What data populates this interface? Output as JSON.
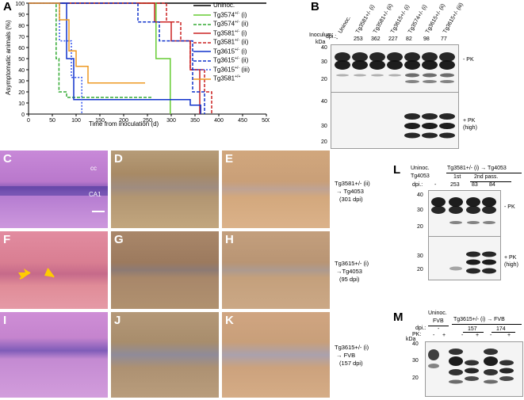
{
  "labels": {
    "A": "A",
    "B": "B",
    "C": "C",
    "D": "D",
    "E": "E",
    "F": "F",
    "G": "G",
    "H": "H",
    "I": "I",
    "J": "J",
    "K": "K",
    "L": "L",
    "M": "M"
  },
  "panelA": {
    "ylabel": "Asymptomatic animals (%)",
    "xlabel": "Time from inoculation (d)",
    "yticks": [
      "0",
      "10",
      "20",
      "30",
      "40",
      "50",
      "60",
      "70",
      "80",
      "90",
      "100"
    ],
    "xticks": [
      "0",
      "50",
      "100",
      "150",
      "200",
      "250",
      "300",
      "350",
      "400",
      "450",
      "500"
    ]
  },
  "chart_data": {
    "type": "line",
    "title": "",
    "xlabel": "Time from inoculation (d)",
    "ylabel": "Asymptomatic animals (%)",
    "xlim": [
      0,
      500
    ],
    "ylim": [
      0,
      100
    ],
    "series": [
      {
        "name": "Uninoc.",
        "color": "#000000",
        "dash": "",
        "x": [
          0,
          500
        ],
        "y": [
          100,
          100
        ]
      },
      {
        "name": "Tg3574+/- (i)",
        "color": "#66cc33",
        "dash": "",
        "x": [
          0,
          268,
          268,
          298,
          298
        ],
        "y": [
          100,
          100,
          50,
          50,
          0
        ]
      },
      {
        "name": "Tg3574+/- (ii)",
        "color": "#33aa33",
        "dash": "4,2",
        "x": [
          0,
          58,
          58,
          64,
          64,
          80,
          80,
          260
        ],
        "y": [
          100,
          100,
          50,
          50,
          20,
          20,
          15,
          15
        ]
      },
      {
        "name": "Tg3581+/- (i)",
        "color": "#cc2222",
        "dash": "",
        "x": [
          0,
          265,
          265,
          300,
          300,
          340,
          340,
          360,
          360
        ],
        "y": [
          100,
          100,
          83,
          83,
          66,
          66,
          40,
          40,
          0
        ]
      },
      {
        "name": "Tg3581+/- (ii)",
        "color": "#cc2222",
        "dash": "4,2",
        "x": [
          0,
          290,
          290,
          320,
          320,
          340,
          340,
          370,
          370,
          385,
          385
        ],
        "y": [
          100,
          100,
          83,
          83,
          66,
          66,
          40,
          40,
          20,
          20,
          0
        ]
      },
      {
        "name": "Tg3615+/- (i)",
        "color": "#1133cc",
        "dash": "",
        "x": [
          0,
          80,
          80,
          95,
          95,
          340,
          340,
          362,
          362
        ],
        "y": [
          100,
          100,
          50,
          50,
          13,
          13,
          8,
          8,
          0
        ]
      },
      {
        "name": "Tg3615+/- (ii)",
        "color": "#1133cc",
        "dash": "4,2",
        "x": [
          0,
          230,
          230,
          275,
          275,
          345,
          345,
          370,
          370
        ],
        "y": [
          100,
          100,
          83,
          83,
          66,
          66,
          20,
          20,
          0
        ]
      },
      {
        "name": "Tg3615+/- (iii)",
        "color": "#3355ee",
        "dash": "2,2",
        "x": [
          0,
          65,
          65,
          90,
          90,
          112,
          112
        ],
        "y": [
          100,
          100,
          66,
          66,
          33,
          33,
          0
        ]
      },
      {
        "name": "Tg3581+/+",
        "color": "#ee9922",
        "dash": "",
        "x": [
          0,
          65,
          65,
          85,
          85,
          100,
          100,
          125,
          125,
          245
        ],
        "y": [
          100,
          100,
          85,
          85,
          57,
          57,
          43,
          43,
          28,
          28
        ]
      }
    ]
  },
  "legend": [
    {
      "main": "Uninoc.",
      "sup": "",
      "suf": "",
      "color": "#000000",
      "dash": ""
    },
    {
      "main": "Tg3574",
      "sup": "+/-",
      "suf": " (i)",
      "color": "#66cc33",
      "dash": ""
    },
    {
      "main": "Tg3574",
      "sup": "+/-",
      "suf": " (ii)",
      "color": "#33aa33",
      "dash": "4,2"
    },
    {
      "main": "Tg3581",
      "sup": "+/-",
      "suf": " (i)",
      "color": "#cc2222",
      "dash": ""
    },
    {
      "main": "Tg3581",
      "sup": "+/-",
      "suf": " (ii)",
      "color": "#cc2222",
      "dash": "4,2"
    },
    {
      "main": "Tg3615",
      "sup": "+/-",
      "suf": " (i)",
      "color": "#1133cc",
      "dash": ""
    },
    {
      "main": "Tg3615",
      "sup": "+/-",
      "suf": " (ii)",
      "color": "#1133cc",
      "dash": "4,2"
    },
    {
      "main": "Tg3615",
      "sup": "+/-",
      "suf": " (iii)",
      "color": "#3355ee",
      "dash": "2,2"
    },
    {
      "main": "Tg3581",
      "sup": "+/+",
      "suf": "",
      "color": "#ee9922",
      "dash": ""
    }
  ],
  "panelB": {
    "inoculum_label": "Inoculum:",
    "dpi_label": "dpi.:",
    "kda_label": "kDa",
    "lanes": [
      {
        "name": "Uninoc.",
        "dpi": "-"
      },
      {
        "name": "Tg3581+/- (i)",
        "dpi": "253"
      },
      {
        "name": "Tg3581+/- (ii)",
        "dpi": "362"
      },
      {
        "name": "Tg3615+/- (i)",
        "dpi": "227"
      },
      {
        "name": "Tg3574+/- (i)",
        "dpi": "82"
      },
      {
        "name": "Tg3615+/- (ii)",
        "dpi": "98"
      },
      {
        "name": "Tg3615+/- (iii)",
        "dpi": "77"
      }
    ],
    "markers_top": [
      "40",
      "30",
      "20"
    ],
    "markers_bottom": [
      "40",
      "30",
      "20"
    ],
    "label_minus": "- PK",
    "label_plus": "+ PK",
    "label_high": "(high)"
  },
  "histology": {
    "cc": "cc",
    "ca1": "CA1",
    "row1_caption_1": "Tg3581+/- (ii)",
    "row1_caption_2": "→ Tg4053",
    "row1_caption_3": "(301 dpi)",
    "row2_caption_1": "Tg3615+/- (i)",
    "row2_caption_2": "→Tg4053",
    "row2_caption_3": "(95 dpi)",
    "row3_caption_1": "Tg3615+/- (i)",
    "row3_caption_2": "→ FVB",
    "row3_caption_3": "(157 dpi)"
  },
  "panelL": {
    "uninoc": "Uninoc.",
    "tg4053": "Tg4053",
    "dpi": "dpi.:",
    "header": "Tg3581+/- (i) → Tg4053",
    "first": "1st",
    "second": "2nd pass.",
    "dpis": [
      "-",
      "253",
      "83",
      "84"
    ],
    "markers_top": [
      "40",
      "30",
      "20"
    ],
    "markers_bottom": [
      "30",
      "20"
    ],
    "label_minus": "- PK",
    "label_plus": "+ PK",
    "label_high": "(high)"
  },
  "panelM": {
    "uninoc": "Uninoc.",
    "fvb": "FVB",
    "header": "Tg3615+/- (i) → FVB",
    "dpi": "dpi.:",
    "pk": "PK:",
    "kda": "kDa",
    "dpis": [
      "-",
      "157",
      "174"
    ],
    "pk_signs": [
      "-",
      "+",
      "-",
      "+",
      "-",
      "+"
    ],
    "markers": [
      "40",
      "30",
      "20"
    ]
  }
}
